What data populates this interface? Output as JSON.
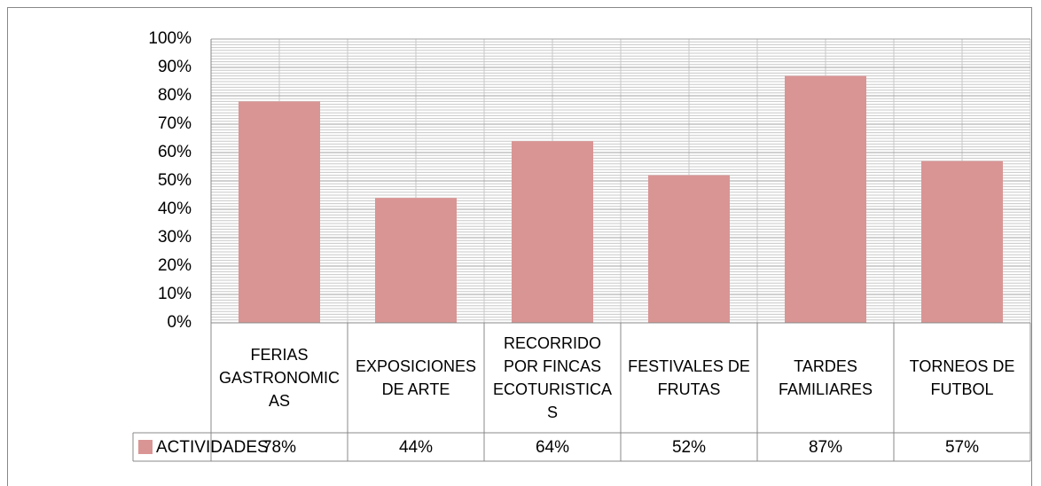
{
  "chart_data": {
    "type": "bar",
    "categories": [
      "FERIAS GASTRONOMICAS",
      "EXPOSICIONES DE ARTE",
      "RECORRIDO POR FINCAS ECOTURISTICAS",
      "FESTIVALES DE FRUTAS",
      "TARDES FAMILIARES",
      "TORNEOS DE FUTBOL"
    ],
    "series": [
      {
        "name": "ACTIVIDADES",
        "color": "#d99594",
        "values": [
          78,
          44,
          64,
          52,
          87,
          57
        ],
        "value_labels": [
          "78%",
          "44%",
          "64%",
          "52%",
          "87%",
          "57%"
        ]
      }
    ],
    "ylim": [
      0,
      100
    ],
    "yticks": [
      {
        "value": 0,
        "label": "0%"
      },
      {
        "value": 10,
        "label": "10%"
      },
      {
        "value": 20,
        "label": "20%"
      },
      {
        "value": 30,
        "label": "30%"
      },
      {
        "value": 40,
        "label": "40%"
      },
      {
        "value": 50,
        "label": "50%"
      },
      {
        "value": 60,
        "label": "60%"
      },
      {
        "value": 70,
        "label": "70%"
      },
      {
        "value": 80,
        "label": "80%"
      },
      {
        "value": 90,
        "label": "90%"
      },
      {
        "value": 100,
        "label": "100%"
      }
    ],
    "grid": true
  }
}
